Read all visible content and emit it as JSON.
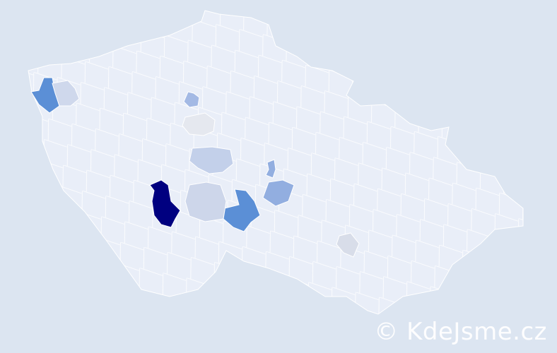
{
  "map": {
    "background_color": "#dce5f1",
    "country_fill": "#e9eef8",
    "border_color": "#ffffff",
    "highlighted_regions": [
      {
        "id": "region-1",
        "color": "#000080"
      },
      {
        "id": "region-2",
        "color": "#5b8fd6"
      },
      {
        "id": "region-3",
        "color": "#5b8fd6"
      },
      {
        "id": "region-4",
        "color": "#92aee0"
      },
      {
        "id": "region-5",
        "color": "#92aee0"
      },
      {
        "id": "region-6",
        "color": "#a3b9e4"
      },
      {
        "id": "region-7",
        "color": "#c3d0ea"
      },
      {
        "id": "region-8",
        "color": "#cdd6ea"
      },
      {
        "id": "region-9",
        "color": "#cfd8ec"
      },
      {
        "id": "region-10",
        "color": "#e5e8ef"
      },
      {
        "id": "region-11",
        "color": "#d8dde9"
      }
    ]
  },
  "watermark": "© KdeJsme.cz"
}
